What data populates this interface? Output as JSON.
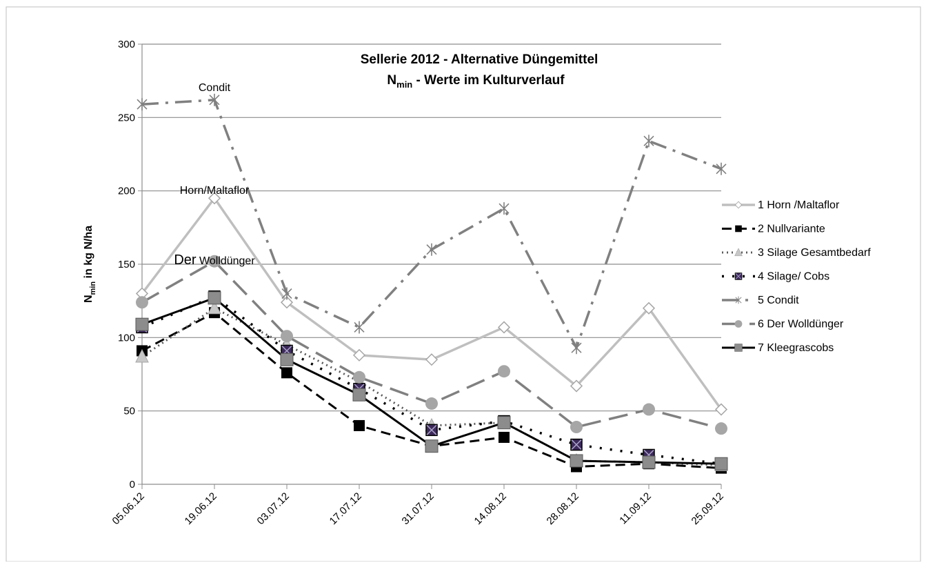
{
  "chart_data": {
    "type": "line",
    "title_line1": "Sellerie 2012 - Alternative Düngemittel",
    "title_line2_main": "N",
    "title_line2_sub": "min",
    "title_line2_rest": " - Werte im Kulturverlauf",
    "ylabel_main": "N",
    "ylabel_sub": "min",
    "ylabel_rest": " in kg N/ha",
    "ylim": [
      0,
      300
    ],
    "yticks": [
      0,
      50,
      100,
      150,
      200,
      250,
      300
    ],
    "grid": true,
    "legend_position": "right",
    "categories": [
      "05.06.12",
      "19.06.12",
      "03.07.12",
      "17.07.12",
      "31.07.12",
      "14.08.12",
      "28.08.12",
      "11.09.12",
      "25.09.12"
    ],
    "series": [
      {
        "name": "1 Horn /Maltaflor",
        "values": [
          130,
          195,
          124,
          88,
          85,
          107,
          67,
          120,
          51
        ],
        "color": "#bfbfbf",
        "dash": "",
        "width": 3.5,
        "marker": "diamond"
      },
      {
        "name": "2 Nullvariante",
        "values": [
          91,
          117,
          76,
          40,
          26,
          32,
          12,
          14,
          11
        ],
        "color": "#000000",
        "dash": "14,8",
        "width": 3,
        "marker": "square-black"
      },
      {
        "name": "3 Silage Gesamtbedarf",
        "values": [
          87,
          120,
          95,
          70,
          40,
          42,
          16,
          15,
          13
        ],
        "color": "#595959",
        "dash": "2,5",
        "width": 3,
        "marker": "triangle"
      },
      {
        "name": "4 Silage/ Cobs",
        "values": [
          107,
          128,
          91,
          65,
          37,
          43,
          27,
          20,
          14
        ],
        "color": "#000000",
        "dash": "3,12",
        "width": 3.5,
        "marker": "xsquare"
      },
      {
        "name": "5 Condit",
        "values": [
          259,
          262,
          130,
          107,
          160,
          188,
          93,
          234,
          215
        ],
        "color": "#808080",
        "dash": "24,10,4,10",
        "width": 3.5,
        "marker": "star"
      },
      {
        "name": "6 Der Wolldünger",
        "values": [
          124,
          152,
          101,
          73,
          55,
          77,
          39,
          51,
          38
        ],
        "color": "#808080",
        "dash": "28,12",
        "width": 3.5,
        "marker": "circle"
      },
      {
        "name": "7 Kleegrascobs",
        "values": [
          109,
          127,
          85,
          61,
          26,
          42,
          16,
          15,
          14
        ],
        "color": "#000000",
        "dash": "",
        "width": 3,
        "marker": "square-gray"
      }
    ],
    "annotations": [
      {
        "text": "Condit",
        "x": "19.06.12",
        "y": 268
      },
      {
        "text": "Horn/Maltaflor",
        "x": "19.06.12",
        "y": 198
      },
      {
        "text_big": "Der",
        "text_small": " Wolldünger",
        "x": "19.06.12",
        "y": 150
      }
    ]
  }
}
